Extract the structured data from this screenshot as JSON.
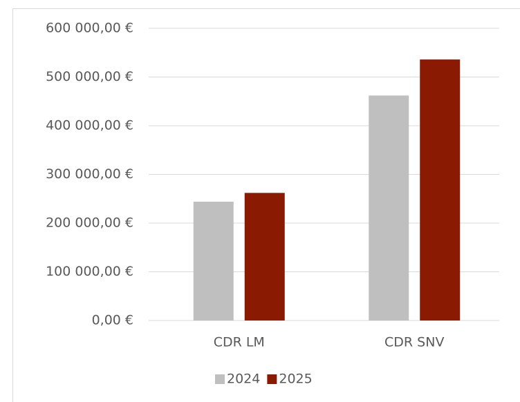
{
  "chart_data": {
    "type": "bar",
    "categories": [
      "CDR LM",
      "CDR SNV"
    ],
    "series": [
      {
        "name": "2024",
        "color": "#bfbfbf",
        "values": [
          244000,
          462000
        ]
      },
      {
        "name": "2025",
        "color": "#8b1a02",
        "values": [
          262000,
          536000
        ]
      }
    ],
    "ylim": [
      0,
      600000
    ],
    "yticks": [
      {
        "value": 0,
        "label": "0,00 €"
      },
      {
        "value": 100000,
        "label": "100 000,00 €"
      },
      {
        "value": 200000,
        "label": "200 000,00 €"
      },
      {
        "value": 300000,
        "label": "300 000,00 €"
      },
      {
        "value": 400000,
        "label": "400 000,00 €"
      },
      {
        "value": 500000,
        "label": "500 000,00 €"
      },
      {
        "value": 600000,
        "label": "600 000,00 €"
      }
    ],
    "grid": true
  }
}
